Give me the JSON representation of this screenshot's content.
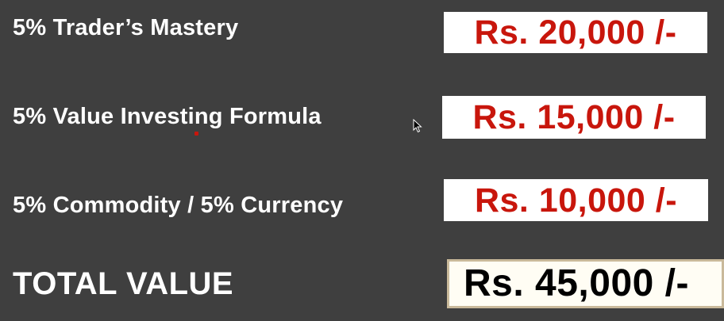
{
  "rows": [
    {
      "label": "5% Trader’s Mastery",
      "price": "Rs. 20,000 /-"
    },
    {
      "label": "5% Value Investing Formula",
      "price": "Rs. 15,000 /-"
    },
    {
      "label": "5% Commodity / 5% Currency",
      "price": "Rs. 10,000 /-"
    }
  ],
  "total": {
    "label": "TOTAL VALUE",
    "price": "Rs. 45,000 /-"
  },
  "colors": {
    "background": "#3f3f3f",
    "price_red": "#c8160c",
    "label_white": "#ffffff",
    "total_price": "#000000"
  },
  "icons": {
    "cursor": "mouse-pointer-icon",
    "marker": "pen-marker-dot"
  }
}
